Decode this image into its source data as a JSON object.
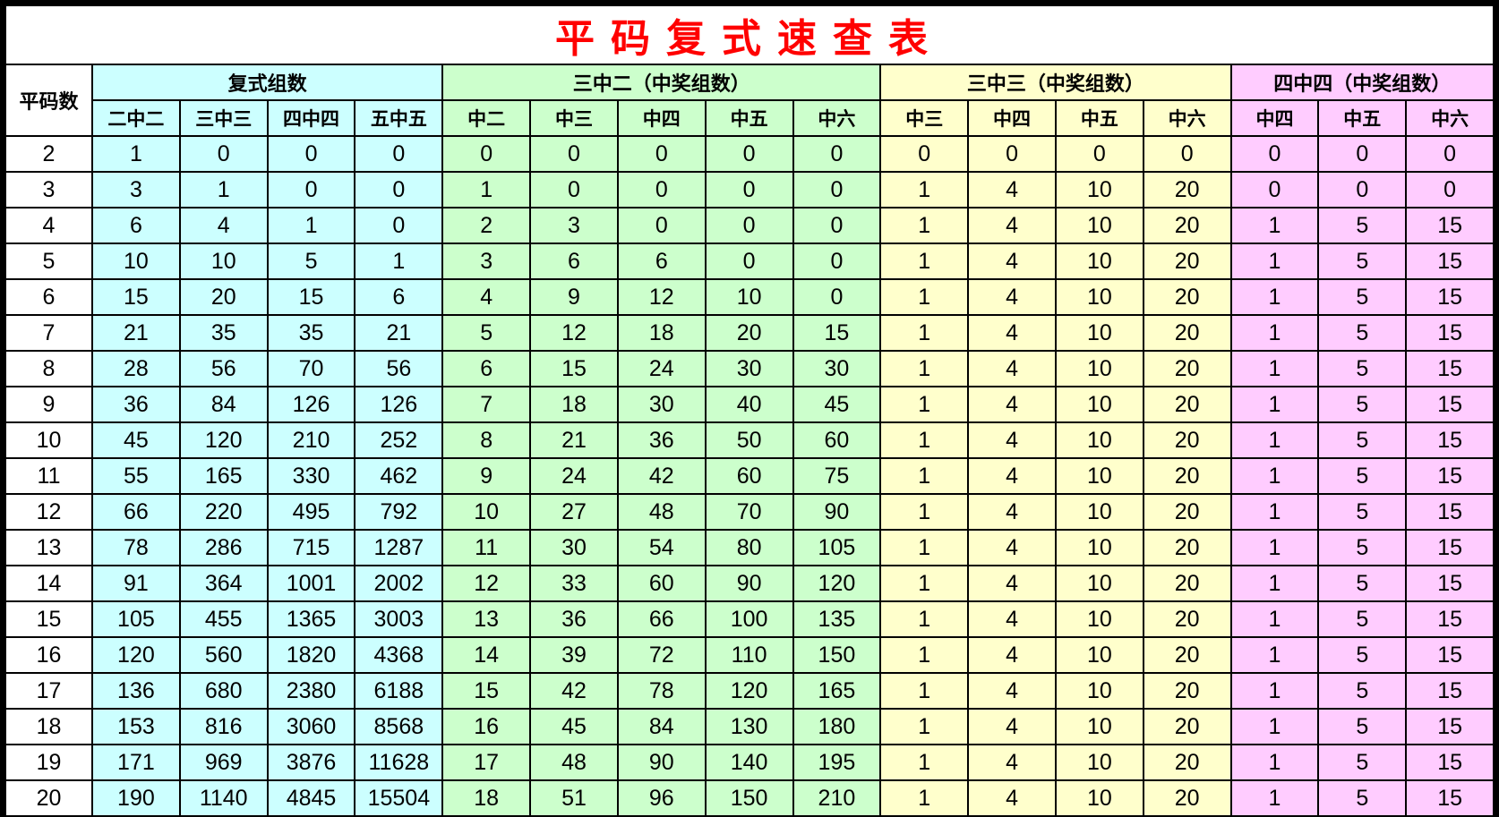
{
  "title": "平码复式速查表",
  "colors": {
    "group1": "#CCFFFF",
    "group2": "#CCFFCC",
    "group3": "#FFFFCC",
    "group4": "#FFCCFF",
    "title": "#FF0000"
  },
  "row_header": "平码数",
  "groups": [
    {
      "label": "复式组数",
      "columns": [
        "二中二",
        "三中三",
        "四中四",
        "五中五"
      ]
    },
    {
      "label": "三中二（中奖组数）",
      "columns": [
        "中二",
        "中三",
        "中四",
        "中五",
        "中六"
      ]
    },
    {
      "label": "三中三（中奖组数）",
      "columns": [
        "中三",
        "中四",
        "中五",
        "中六"
      ]
    },
    {
      "label": "四中四（中奖组数）",
      "columns": [
        "中四",
        "中五",
        "中六"
      ]
    }
  ],
  "rows": [
    [
      "2",
      "1",
      "0",
      "0",
      "0",
      "0",
      "0",
      "0",
      "0",
      "0",
      "0",
      "0",
      "0",
      "0",
      "0",
      "0",
      "0"
    ],
    [
      "3",
      "3",
      "1",
      "0",
      "0",
      "1",
      "0",
      "0",
      "0",
      "0",
      "1",
      "4",
      "10",
      "20",
      "0",
      "0",
      "0"
    ],
    [
      "4",
      "6",
      "4",
      "1",
      "0",
      "2",
      "3",
      "0",
      "0",
      "0",
      "1",
      "4",
      "10",
      "20",
      "1",
      "5",
      "15"
    ],
    [
      "5",
      "10",
      "10",
      "5",
      "1",
      "3",
      "6",
      "6",
      "0",
      "0",
      "1",
      "4",
      "10",
      "20",
      "1",
      "5",
      "15"
    ],
    [
      "6",
      "15",
      "20",
      "15",
      "6",
      "4",
      "9",
      "12",
      "10",
      "0",
      "1",
      "4",
      "10",
      "20",
      "1",
      "5",
      "15"
    ],
    [
      "7",
      "21",
      "35",
      "35",
      "21",
      "5",
      "12",
      "18",
      "20",
      "15",
      "1",
      "4",
      "10",
      "20",
      "1",
      "5",
      "15"
    ],
    [
      "8",
      "28",
      "56",
      "70",
      "56",
      "6",
      "15",
      "24",
      "30",
      "30",
      "1",
      "4",
      "10",
      "20",
      "1",
      "5",
      "15"
    ],
    [
      "9",
      "36",
      "84",
      "126",
      "126",
      "7",
      "18",
      "30",
      "40",
      "45",
      "1",
      "4",
      "10",
      "20",
      "1",
      "5",
      "15"
    ],
    [
      "10",
      "45",
      "120",
      "210",
      "252",
      "8",
      "21",
      "36",
      "50",
      "60",
      "1",
      "4",
      "10",
      "20",
      "1",
      "5",
      "15"
    ],
    [
      "11",
      "55",
      "165",
      "330",
      "462",
      "9",
      "24",
      "42",
      "60",
      "75",
      "1",
      "4",
      "10",
      "20",
      "1",
      "5",
      "15"
    ],
    [
      "12",
      "66",
      "220",
      "495",
      "792",
      "10",
      "27",
      "48",
      "70",
      "90",
      "1",
      "4",
      "10",
      "20",
      "1",
      "5",
      "15"
    ],
    [
      "13",
      "78",
      "286",
      "715",
      "1287",
      "11",
      "30",
      "54",
      "80",
      "105",
      "1",
      "4",
      "10",
      "20",
      "1",
      "5",
      "15"
    ],
    [
      "14",
      "91",
      "364",
      "1001",
      "2002",
      "12",
      "33",
      "60",
      "90",
      "120",
      "1",
      "4",
      "10",
      "20",
      "1",
      "5",
      "15"
    ],
    [
      "15",
      "105",
      "455",
      "1365",
      "3003",
      "13",
      "36",
      "66",
      "100",
      "135",
      "1",
      "4",
      "10",
      "20",
      "1",
      "5",
      "15"
    ],
    [
      "16",
      "120",
      "560",
      "1820",
      "4368",
      "14",
      "39",
      "72",
      "110",
      "150",
      "1",
      "4",
      "10",
      "20",
      "1",
      "5",
      "15"
    ],
    [
      "17",
      "136",
      "680",
      "2380",
      "6188",
      "15",
      "42",
      "78",
      "120",
      "165",
      "1",
      "4",
      "10",
      "20",
      "1",
      "5",
      "15"
    ],
    [
      "18",
      "153",
      "816",
      "3060",
      "8568",
      "16",
      "45",
      "84",
      "130",
      "180",
      "1",
      "4",
      "10",
      "20",
      "1",
      "5",
      "15"
    ],
    [
      "19",
      "171",
      "969",
      "3876",
      "11628",
      "17",
      "48",
      "90",
      "140",
      "195",
      "1",
      "4",
      "10",
      "20",
      "1",
      "5",
      "15"
    ],
    [
      "20",
      "190",
      "1140",
      "4845",
      "15504",
      "18",
      "51",
      "96",
      "150",
      "210",
      "1",
      "4",
      "10",
      "20",
      "1",
      "5",
      "15"
    ]
  ]
}
